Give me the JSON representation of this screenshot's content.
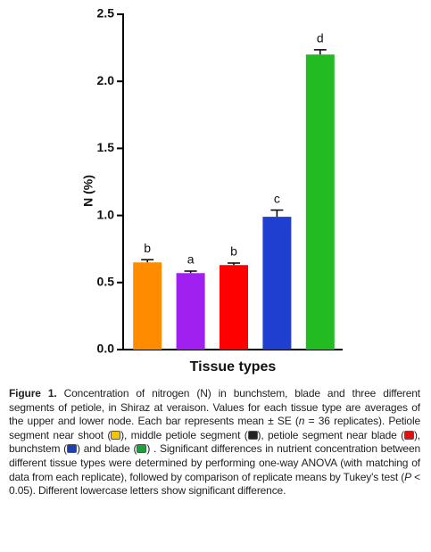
{
  "chart_data": {
    "type": "bar",
    "y_label": "N (%)",
    "x_label": "Tissue types",
    "categories": [
      null,
      null,
      null,
      null,
      null
    ],
    "values": [
      0.65,
      0.57,
      0.63,
      0.99,
      2.2
    ],
    "errors": [
      0.02,
      0.015,
      0.015,
      0.05,
      0.035
    ],
    "colors": [
      "#ff8c00",
      "#a020f0",
      "#ff0000",
      "#1e3fd0",
      "#22bb22"
    ],
    "letters": [
      "b",
      "a",
      "b",
      "c",
      "d"
    ],
    "ylim": [
      0,
      2.5
    ],
    "yticks": [
      {
        "value": 0,
        "label": "0.0"
      },
      {
        "value": 0.5,
        "label": "0.5"
      },
      {
        "value": 1,
        "label": "1.0"
      },
      {
        "value": 1.5,
        "label": "1.5"
      },
      {
        "value": 2,
        "label": "2.0"
      },
      {
        "value": 2.5,
        "label": "2.5"
      }
    ]
  },
  "caption": {
    "label": "Figure 1.",
    "parts": [
      " Concentration of nitrogen (N) in bunchstem, blade and three different segments of petiole, in Shiraz at veraison. Values for each tissue type are averages of the upper and lower node. Each bar represents mean ± SE (",
      "n",
      " = 36 replicates). Petiole segment near shoot (",
      "), middle petiole segment (",
      "), petiole segment near blade (",
      "), bunchstem (",
      ") and blade (",
      ") . Significant differences in nutrient concentration between different tissue types were determined by performing one-way ANOVA (with matching of data from each replicate), followed by comparison of replicate means by Tukey's test (",
      "P",
      " < 0.05). Different lowercase letters show significant difference."
    ]
  }
}
